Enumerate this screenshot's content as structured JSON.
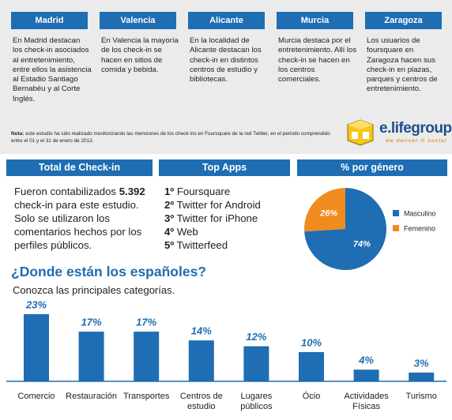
{
  "cities": [
    {
      "name": "Madrid",
      "text": "En Madrid destacan los check-in asociados al entretenimiento, entre ellos la asistencia al Estadio Santiago Bernabéu y al Corte Inglés."
    },
    {
      "name": "Valencia",
      "text": "En Valencia la mayoría de los check-in se hacen en sitios de comida y bebida."
    },
    {
      "name": "Alicante",
      "text": "En la localidad de Alicante destacan los check-in en distintos centros de estudio y bibliotecas."
    },
    {
      "name": "Murcia",
      "text": "Murcia destaca por el entretenimiento. Allí los check-in se hacen en los centros comerciales."
    },
    {
      "name": "Zaragoza",
      "text": "Los usuarios de foursquare en Zaragoza hacen sus check-in en plazas, parques y centros de entretenimiento."
    }
  ],
  "note": {
    "label": "Nota:",
    "text": "este estudio ha sido realizado monitorizando las menciones de los check ins en Foursquare de la red Twitter, en el periodo comprendido entre el 01 y el 31 de enero de 2013."
  },
  "logo": {
    "name": "e.lifegroup",
    "tagline": "we deliver it social"
  },
  "total_checkin": {
    "title": "Total de Check-in",
    "before": "Fueron contabilizados",
    "number": "5.392",
    "after": "check-in para este estudio. Solo se utilizaron los comentarios hechos por los perfiles públicos."
  },
  "top_apps": {
    "title": "Top Apps",
    "items": [
      {
        "rank": "1º",
        "name": "Foursquare"
      },
      {
        "rank": "2º",
        "name": "Twitter for Android"
      },
      {
        "rank": "3º",
        "name": "Twitter for iPhone"
      },
      {
        "rank": "4º",
        "name": "Web"
      },
      {
        "rank": "5º",
        "name": "Twitterfeed"
      }
    ]
  },
  "chart_data": [
    {
      "type": "pie",
      "title": "% por género",
      "categories": [
        "Masculino",
        "Femenino"
      ],
      "values": [
        74,
        26
      ],
      "value_labels": [
        "74%",
        "26%"
      ],
      "colors": [
        "#1f6db3",
        "#f08c1e"
      ]
    },
    {
      "type": "bar",
      "title": "¿Donde están los españoles?",
      "subtitle": "Conozca las principales categorías.",
      "categories": [
        "Comercio",
        "Restauración",
        "Transportes",
        "Centros de\nestudio",
        "Lugares\npúblicos",
        "Ócio",
        "Actividades\nFísicas",
        "Turismo"
      ],
      "values": [
        23,
        17,
        17,
        14,
        12,
        10,
        4,
        3
      ],
      "value_labels": [
        "23%",
        "17%",
        "17%",
        "14%",
        "12%",
        "10%",
        "4%",
        "3%"
      ],
      "color": "#1f6db3"
    }
  ]
}
